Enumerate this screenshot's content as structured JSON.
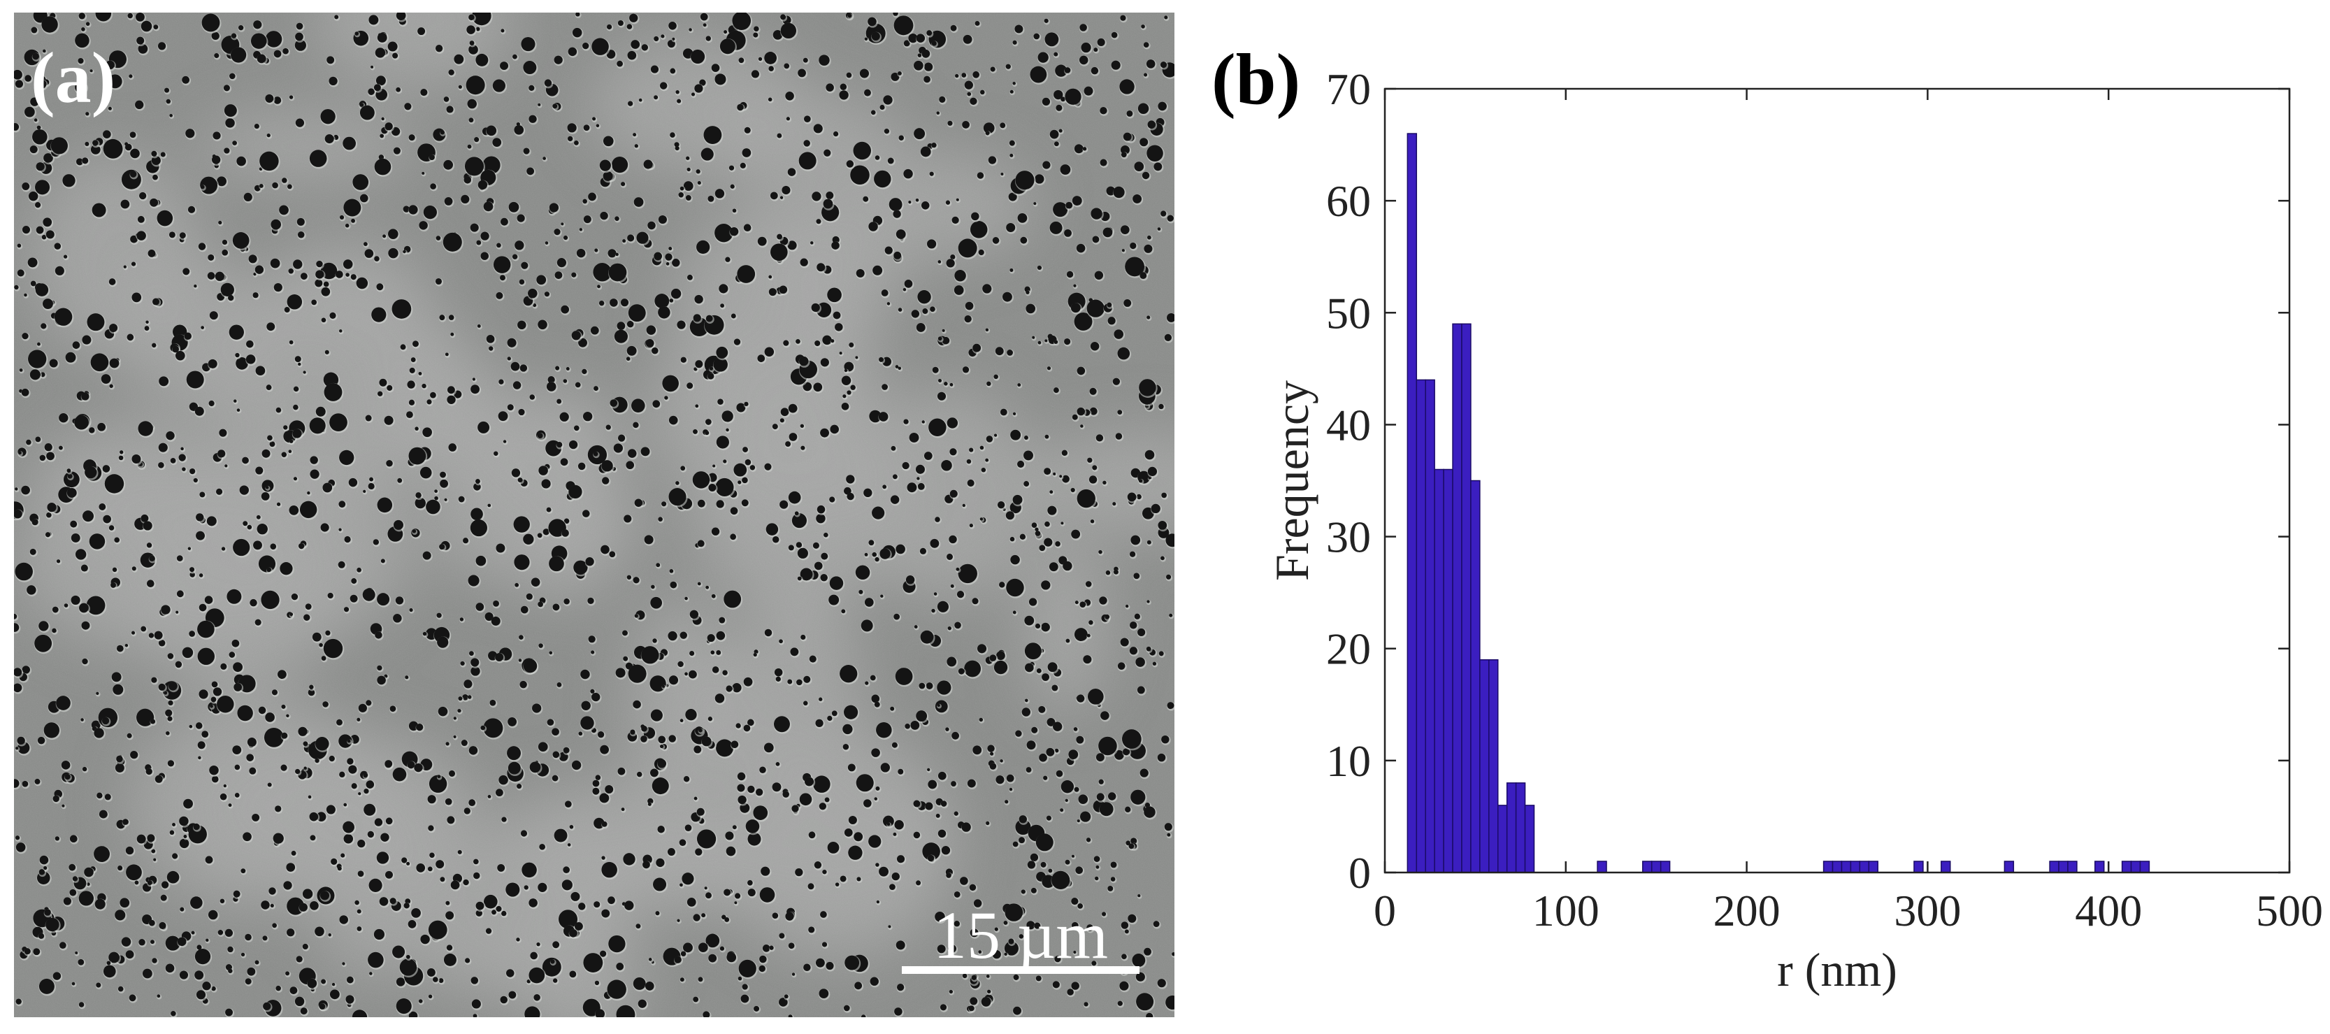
{
  "panel_a": {
    "label": "(a)",
    "scale_bar_label": "15 µm"
  },
  "panel_b": {
    "label": "(b)"
  },
  "colors": {
    "bar_fill": "#3b1ec0",
    "bar_stroke": "#1a0b66",
    "sem_background": "#8a8c8a",
    "sem_light": "#a6a8a6",
    "sem_pore": "#141414"
  },
  "chart_data": {
    "type": "bar",
    "title": "",
    "xlabel": "r (nm)",
    "ylabel": "Frequency",
    "xlim": [
      0,
      500
    ],
    "ylim": [
      0,
      70
    ],
    "xticks": [
      0,
      100,
      200,
      300,
      400,
      500
    ],
    "yticks": [
      0,
      10,
      20,
      30,
      40,
      50,
      60,
      70
    ],
    "bin_width": 5,
    "bins": [
      {
        "x": 15,
        "value": 66
      },
      {
        "x": 20,
        "value": 44
      },
      {
        "x": 25,
        "value": 44
      },
      {
        "x": 30,
        "value": 36
      },
      {
        "x": 35,
        "value": 36
      },
      {
        "x": 40,
        "value": 49
      },
      {
        "x": 45,
        "value": 49
      },
      {
        "x": 50,
        "value": 35
      },
      {
        "x": 55,
        "value": 19
      },
      {
        "x": 60,
        "value": 19
      },
      {
        "x": 65,
        "value": 6
      },
      {
        "x": 70,
        "value": 8
      },
      {
        "x": 75,
        "value": 8
      },
      {
        "x": 80,
        "value": 6
      },
      {
        "x": 120,
        "value": 1
      },
      {
        "x": 145,
        "value": 1
      },
      {
        "x": 150,
        "value": 1
      },
      {
        "x": 155,
        "value": 1
      },
      {
        "x": 245,
        "value": 1
      },
      {
        "x": 250,
        "value": 1
      },
      {
        "x": 255,
        "value": 1
      },
      {
        "x": 260,
        "value": 1
      },
      {
        "x": 265,
        "value": 1
      },
      {
        "x": 270,
        "value": 1
      },
      {
        "x": 295,
        "value": 1
      },
      {
        "x": 310,
        "value": 1
      },
      {
        "x": 345,
        "value": 1
      },
      {
        "x": 370,
        "value": 1
      },
      {
        "x": 375,
        "value": 1
      },
      {
        "x": 380,
        "value": 1
      },
      {
        "x": 395,
        "value": 1
      },
      {
        "x": 410,
        "value": 1
      },
      {
        "x": 415,
        "value": 1
      },
      {
        "x": 420,
        "value": 1
      }
    ],
    "grid": false,
    "legend": "none"
  }
}
